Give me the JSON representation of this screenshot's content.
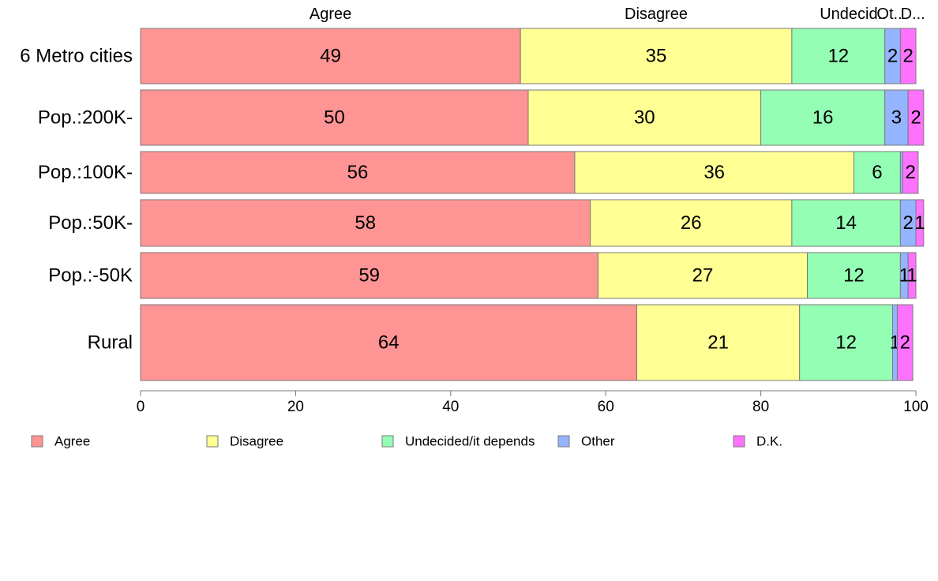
{
  "chart_data": {
    "type": "bar",
    "orientation": "horizontal",
    "stacked": true,
    "categories": [
      "6 Metro cities",
      "Pop.:200K-",
      "Pop.:100K-",
      "Pop.:50K-",
      "Pop.:-50K",
      "Rural"
    ],
    "series": [
      {
        "name": "Agree",
        "color": "#ff9494",
        "values": [
          49,
          50,
          56,
          58,
          59,
          64
        ]
      },
      {
        "name": "Disagree",
        "color": "#ffff94",
        "values": [
          35,
          30,
          36,
          26,
          27,
          21
        ]
      },
      {
        "name": "Undecided/it depends",
        "color": "#94ffb4",
        "values": [
          12,
          16,
          6,
          14,
          12,
          12
        ]
      },
      {
        "name": "Other",
        "color": "#94b4ff",
        "values": [
          2,
          3,
          0.3,
          2,
          1,
          0.6
        ]
      },
      {
        "name": "D.K.",
        "color": "#ff72ff",
        "values": [
          2,
          2,
          2,
          1,
          1,
          2
        ]
      }
    ],
    "data_labels": [
      [
        "49",
        "35",
        "12",
        "2",
        "2"
      ],
      [
        "50",
        "30",
        "16",
        "3",
        "2"
      ],
      [
        "56",
        "36",
        "6",
        "",
        "2"
      ],
      [
        "58",
        "26",
        "14",
        "2",
        "1"
      ],
      [
        "59",
        "27",
        "12",
        "1",
        "1"
      ],
      [
        "64",
        "21",
        "12",
        "1",
        "2"
      ]
    ],
    "top_labels": [
      "Agree",
      "Disagree",
      "Undecid..",
      "Ot..",
      "D..."
    ],
    "xlim": [
      0,
      100
    ],
    "xticks": [
      "0",
      "20",
      "40",
      "60",
      "80",
      "100"
    ],
    "legend": {
      "position": "bottom",
      "entries": [
        "Agree",
        "Disagree",
        "Undecided/it depends",
        "Other",
        "D.K."
      ]
    },
    "grid": false
  }
}
